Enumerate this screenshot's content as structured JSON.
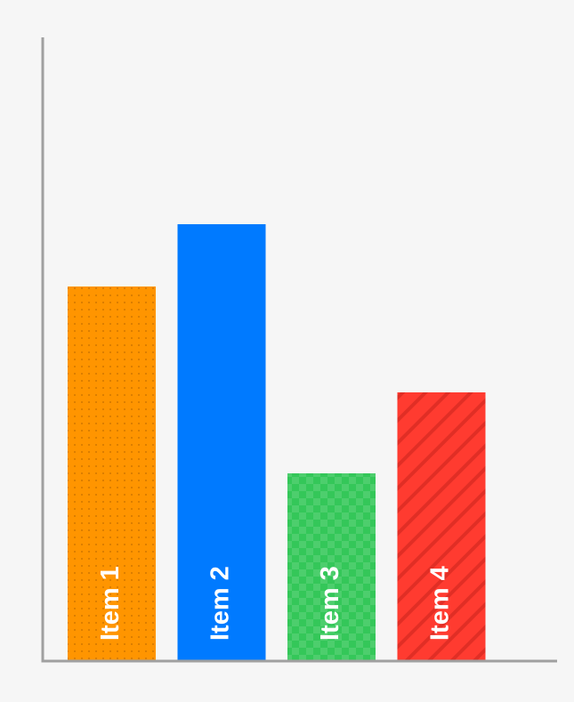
{
  "chart_data": {
    "type": "bar",
    "categories": [
      "Item 1",
      "Item 2",
      "Item 3",
      "Item 4"
    ],
    "values": [
      60,
      70,
      30,
      43
    ],
    "ylim": [
      0,
      100
    ],
    "title": "",
    "xlabel": "",
    "ylabel": "",
    "grid": false,
    "bar_label_orientation": "vertical-inside",
    "colors": [
      "#ff9500",
      "#007aff",
      "#34c759",
      "#ff3b30"
    ],
    "patterns": [
      "dots",
      "none",
      "checker",
      "diagonal-stripes"
    ],
    "axis_color": "#a0a0a0",
    "background": "#f6f6f6"
  }
}
